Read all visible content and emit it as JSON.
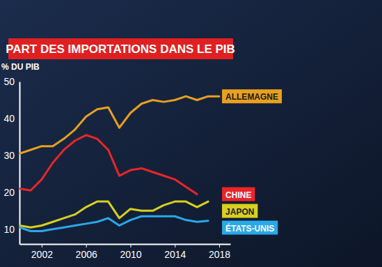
{
  "chart_data": {
    "type": "line",
    "title": "PART DES IMPORTATIONS DANS LE PIB",
    "y_label": "% DU PIB",
    "x": [
      2000,
      2001,
      2002,
      2003,
      2004,
      2005,
      2006,
      2007,
      2008,
      2009,
      2010,
      2011,
      2012,
      2013,
      2014,
      2015,
      2016,
      2017,
      2018
    ],
    "series": [
      {
        "name": "ALLEMAGNE",
        "color": "#e8a020",
        "values": [
          30.5,
          31.5,
          32.5,
          32.5,
          34.5,
          37,
          40.5,
          42.5,
          43,
          37.5,
          41.5,
          44,
          45,
          44.5,
          45,
          46,
          45,
          46,
          46
        ]
      },
      {
        "name": "CHINE",
        "color": "#e8262a",
        "values": [
          21,
          20.5,
          23.5,
          28,
          31.5,
          34,
          35.5,
          34.5,
          31.5,
          24.5,
          26,
          26.5,
          25.5,
          24.5,
          23.5,
          21.5,
          19.5,
          null,
          null
        ]
      },
      {
        "name": "JAPON",
        "color": "#d8d020",
        "values": [
          11,
          10.5,
          11,
          12,
          13,
          14,
          16,
          17.5,
          17.5,
          13,
          15.5,
          15,
          15,
          16.5,
          17.5,
          17.5,
          16,
          17.5,
          null
        ]
      },
      {
        "name": "ÉTATS-UNIS",
        "color": "#2aa8e8",
        "values": [
          10.5,
          9.5,
          9.5,
          10,
          10.5,
          11,
          11.5,
          12,
          13,
          11,
          12.5,
          13.5,
          13.5,
          13.5,
          13.5,
          12.5,
          12,
          12.3,
          null
        ]
      }
    ],
    "xlim": [
      2000,
      2019
    ],
    "xticks": [
      2002,
      2006,
      2010,
      2014,
      2018
    ],
    "ylim": [
      6,
      50
    ],
    "yticks": [
      10,
      20,
      30,
      40,
      50
    ],
    "grid": false,
    "legend": "right"
  }
}
